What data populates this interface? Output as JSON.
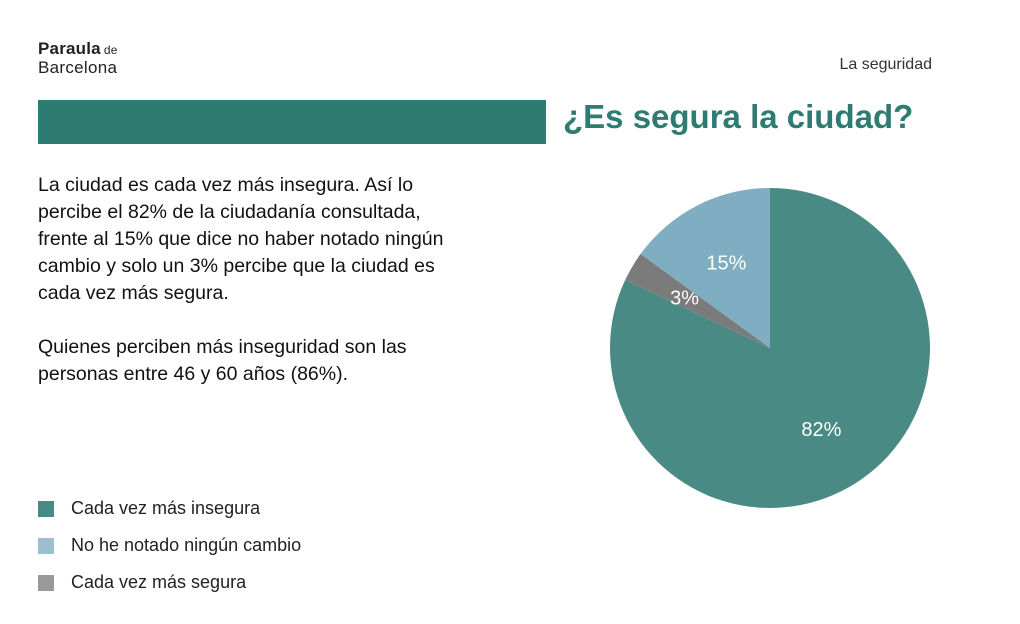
{
  "logo": {
    "line1": "Paraula",
    "line1_small": "de",
    "line2": "Barcelona"
  },
  "header": {
    "section": "La seguridad",
    "title": "¿Es segura la ciudad?"
  },
  "body": {
    "paragraphs": [
      "La ciudad es cada vez más insegura. Así lo percibe el 82% de la ciudadanía consultada, frente al 15% que dice no haber notado ningún cambio y solo un 3% percibe que la ciudad es cada vez más segura.",
      "Quienes perciben más inseguridad son las personas entre 46 y 60 años (86%)."
    ]
  },
  "chart_data": {
    "type": "pie",
    "title": "",
    "legend_position": "bottom-left",
    "slices": [
      {
        "label": "Cada vez más insegura",
        "value": 82,
        "display": "82%",
        "color": "#4a8a84"
      },
      {
        "label": "Cada vez más segura",
        "value": 3,
        "display": "3%",
        "color": "#7b7b7b"
      },
      {
        "label": "No he notado ningún cambio",
        "value": 15,
        "display": "15%",
        "color": "#7fadc1"
      }
    ],
    "legend": [
      {
        "label": "Cada vez más insegura",
        "color": "#4a8a84"
      },
      {
        "label": "No he notado ningún cambio",
        "color": "#9dbfcf"
      },
      {
        "label": "Cada vez más segura",
        "color": "#9a9a9a"
      }
    ]
  }
}
